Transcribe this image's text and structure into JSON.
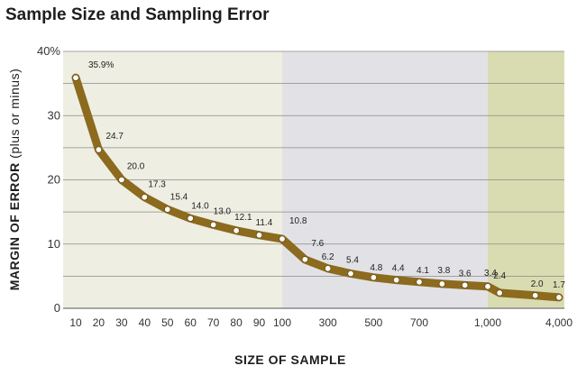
{
  "title": "Sample Size and Sampling Error",
  "chart_data": {
    "type": "line",
    "title": "Sample Size and Sampling Error",
    "xlabel": "SIZE OF SAMPLE",
    "ylabel_main": "MARGIN OF ERROR",
    "ylabel_sub": "(plus or minus)",
    "x": [
      10,
      20,
      30,
      40,
      50,
      60,
      70,
      80,
      90,
      100,
      200,
      300,
      400,
      500,
      600,
      700,
      800,
      900,
      1000,
      1500,
      3000,
      4000
    ],
    "values": [
      35.9,
      24.7,
      20.0,
      17.3,
      15.4,
      14.0,
      13.0,
      12.1,
      11.4,
      10.8,
      7.6,
      6.2,
      5.4,
      4.8,
      4.4,
      4.1,
      3.8,
      3.6,
      3.4,
      2.4,
      2.0,
      1.7
    ],
    "data_labels": [
      "35.9%",
      "24.7",
      "20.0",
      "17.3",
      "15.4",
      "14.0",
      "13.0",
      "12.1",
      "11.4",
      "10.8",
      "7.6",
      "6.2",
      "5.4",
      "4.8",
      "4.4",
      "4.1",
      "3.8",
      "3.6",
      "3.4",
      "2.4",
      "2.0",
      "1.7"
    ],
    "x_tick_labels": [
      "10",
      "20",
      "30",
      "40",
      "50",
      "60",
      "70",
      "80",
      "90",
      "100",
      "300",
      "500",
      "700",
      "1,000",
      "4,000"
    ],
    "y_tick_labels": [
      "0",
      "10",
      "20",
      "30",
      "40%"
    ],
    "ylim": [
      0,
      40
    ],
    "grid": true,
    "colors": {
      "line": "#8c6a1e",
      "marker_fill": "#ffffff",
      "band_1": "#eeeee2",
      "band_2": "#e2e2e6",
      "band_3": "#d9dcb1",
      "grid": "#8a8a8a"
    }
  }
}
